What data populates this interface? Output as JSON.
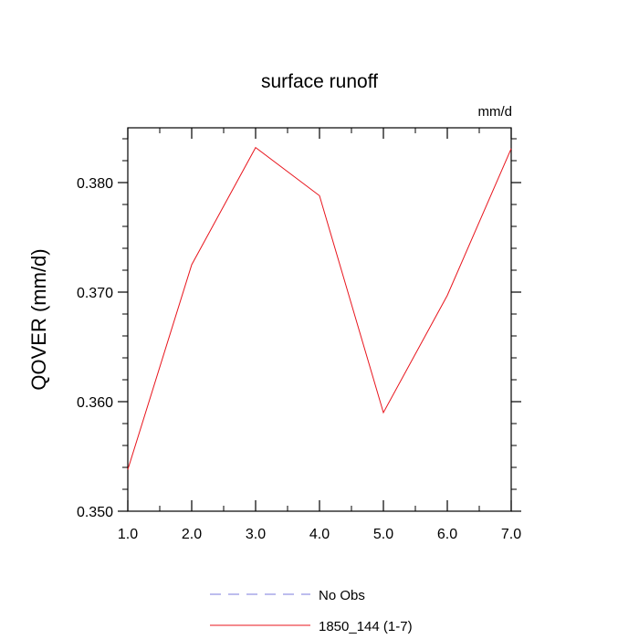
{
  "chart_data": {
    "type": "line",
    "title": "surface runoff",
    "units_label": "mm/d",
    "ylabel": "QOVER  (mm/d)",
    "xlabel": "",
    "xlim": [
      1,
      7
    ],
    "ylim": [
      0.35,
      0.385
    ],
    "x_ticks": [
      1,
      2,
      3,
      4,
      5,
      6,
      7
    ],
    "x_tick_labels": [
      "1.0",
      "2.0",
      "3.0",
      "4.0",
      "5.0",
      "6.0",
      "7.0"
    ],
    "y_ticks": [
      0.35,
      0.36,
      0.37,
      0.38
    ],
    "y_tick_labels": [
      "0.350",
      "0.360",
      "0.370",
      "0.380"
    ],
    "grid": false,
    "legend_position": "bottom",
    "series": [
      {
        "name": "1850_144 (1-7)",
        "color": "#e8141c",
        "dash": "solid",
        "x": [
          1,
          2,
          3,
          4,
          5,
          6,
          7
        ],
        "values": [
          0.3538,
          0.3725,
          0.3832,
          0.3788,
          0.359,
          0.3697,
          0.3831
        ]
      }
    ],
    "legend": [
      {
        "label": "No Obs",
        "color": "#7b7bdc",
        "dash": "dashed"
      },
      {
        "label": "1850_144 (1-7)",
        "color": "#e8141c",
        "dash": "solid"
      }
    ]
  }
}
